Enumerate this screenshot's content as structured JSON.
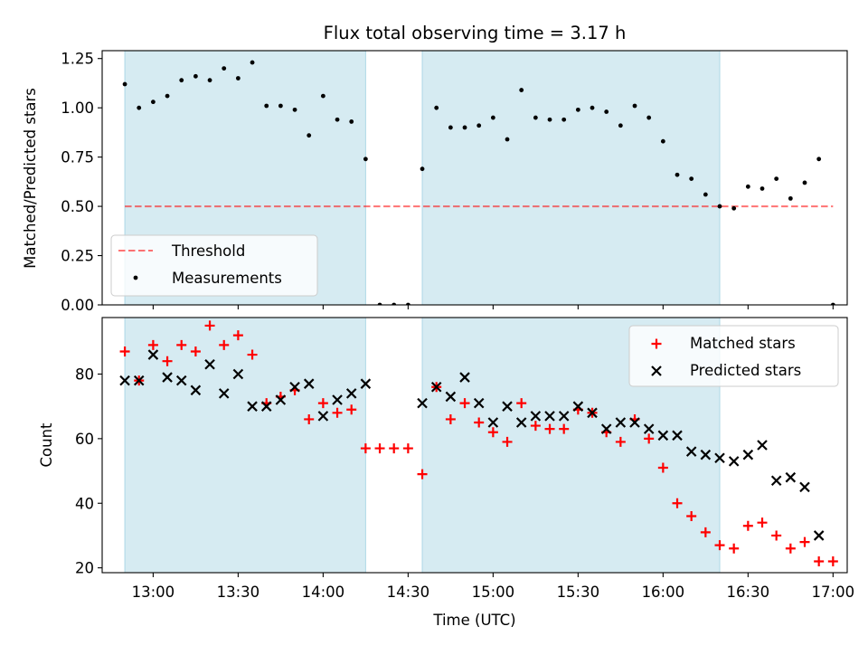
{
  "chart_data": {
    "type": "scatter",
    "title": "Flux total observing time = 3.17 h",
    "xlabel": "Time (UTC)",
    "x_ticks": [
      "13:00",
      "13:30",
      "14:00",
      "14:30",
      "15:00",
      "15:30",
      "16:00",
      "16:30",
      "17:00"
    ],
    "x_range": [
      "12:42",
      "17:05"
    ],
    "colors": {
      "band": "#add8e6",
      "threshold": "#ff0000",
      "measurements": "#000000",
      "matched": "#ff0000",
      "predicted": "#000000"
    },
    "shaded_intervals": [
      [
        "12:50",
        "14:15"
      ],
      [
        "14:35",
        "16:20"
      ]
    ],
    "panels": [
      {
        "id": "ratio",
        "ylabel": "Matched/Predicted stars",
        "ylim": [
          0.0,
          1.29
        ],
        "y_ticks": [
          "0.00",
          "0.25",
          "0.50",
          "0.75",
          "1.00",
          "1.25"
        ],
        "legend": {
          "position": "lower-left",
          "entries": [
            "Threshold",
            "Measurements"
          ]
        },
        "threshold": {
          "name": "Threshold",
          "value": 0.5,
          "x_range": [
            "12:50",
            "17:00"
          ]
        },
        "measurements": {
          "name": "Measurements",
          "x": [
            "12:50",
            "12:55",
            "13:00",
            "13:05",
            "13:10",
            "13:15",
            "13:20",
            "13:25",
            "13:30",
            "13:35",
            "13:40",
            "13:45",
            "13:50",
            "13:55",
            "14:00",
            "14:05",
            "14:10",
            "14:15",
            "14:20",
            "14:25",
            "14:30",
            "14:35",
            "14:40",
            "14:45",
            "14:50",
            "14:55",
            "15:00",
            "15:05",
            "15:10",
            "15:15",
            "15:20",
            "15:25",
            "15:30",
            "15:35",
            "15:40",
            "15:45",
            "15:50",
            "15:55",
            "16:00",
            "16:05",
            "16:10",
            "16:15",
            "16:20",
            "16:25",
            "16:30",
            "16:35",
            "16:40",
            "16:45",
            "16:50",
            "16:55",
            "17:00"
          ],
          "y": [
            1.12,
            1.0,
            1.03,
            1.06,
            1.14,
            1.16,
            1.14,
            1.2,
            1.15,
            1.23,
            1.01,
            1.01,
            0.99,
            0.86,
            1.06,
            0.94,
            0.93,
            0.74,
            0.0,
            0.0,
            0.0,
            0.69,
            1.0,
            0.9,
            0.9,
            0.91,
            0.95,
            0.84,
            1.09,
            0.95,
            0.94,
            0.94,
            0.99,
            1.0,
            0.98,
            0.91,
            1.01,
            0.95,
            0.83,
            0.66,
            0.64,
            0.56,
            0.5,
            0.49,
            0.6,
            0.59,
            0.64,
            0.54,
            0.62,
            0.74,
            0.0
          ]
        }
      },
      {
        "id": "counts",
        "ylabel": "Count",
        "ylim": [
          18.5,
          97.5
        ],
        "y_ticks": [
          "20",
          "40",
          "60",
          "80"
        ],
        "legend": {
          "position": "upper-right",
          "entries": [
            "Matched stars",
            "Predicted stars"
          ]
        },
        "matched": {
          "name": "Matched stars",
          "x": [
            "12:50",
            "12:55",
            "13:00",
            "13:05",
            "13:10",
            "13:15",
            "13:20",
            "13:25",
            "13:30",
            "13:35",
            "13:40",
            "13:45",
            "13:50",
            "13:55",
            "14:00",
            "14:05",
            "14:10",
            "14:15",
            "14:20",
            "14:25",
            "14:30",
            "14:35",
            "14:40",
            "14:45",
            "14:50",
            "14:55",
            "15:00",
            "15:05",
            "15:10",
            "15:15",
            "15:20",
            "15:25",
            "15:30",
            "15:35",
            "15:40",
            "15:45",
            "15:50",
            "15:55",
            "16:00",
            "16:05",
            "16:10",
            "16:15",
            "16:20",
            "16:25",
            "16:30",
            "16:35",
            "16:40",
            "16:45",
            "16:50",
            "16:55",
            "17:00"
          ],
          "y": [
            87,
            78,
            89,
            84,
            89,
            87,
            95,
            89,
            92,
            86,
            71,
            73,
            75,
            66,
            71,
            68,
            69,
            57,
            57,
            57,
            57,
            49,
            76,
            66,
            71,
            65,
            62,
            59,
            71,
            64,
            63,
            63,
            69,
            68,
            62,
            59,
            66,
            60,
            51,
            40,
            36,
            31,
            27,
            26,
            33,
            34,
            30,
            26,
            28,
            22,
            22
          ]
        },
        "predicted": {
          "name": "Predicted stars",
          "x": [
            "12:50",
            "12:55",
            "13:00",
            "13:05",
            "13:10",
            "13:15",
            "13:20",
            "13:25",
            "13:30",
            "13:35",
            "13:40",
            "13:45",
            "13:50",
            "13:55",
            "14:00",
            "14:05",
            "14:10",
            "14:15",
            "14:35",
            "14:40",
            "14:45",
            "14:50",
            "14:55",
            "15:00",
            "15:05",
            "15:10",
            "15:15",
            "15:20",
            "15:25",
            "15:30",
            "15:35",
            "15:40",
            "15:45",
            "15:50",
            "15:55",
            "16:00",
            "16:05",
            "16:10",
            "16:15",
            "16:20",
            "16:25",
            "16:30",
            "16:35",
            "16:40",
            "16:45",
            "16:50",
            "16:55"
          ],
          "y": [
            78,
            78,
            86,
            79,
            78,
            75,
            83,
            74,
            80,
            70,
            70,
            72,
            76,
            77,
            67,
            72,
            74,
            77,
            71,
            76,
            73,
            79,
            71,
            65,
            70,
            65,
            67,
            67,
            67,
            70,
            68,
            63,
            65,
            65,
            63,
            61,
            61,
            56,
            55,
            54,
            53,
            55,
            58,
            47,
            48,
            45,
            30
          ]
        }
      }
    ]
  }
}
